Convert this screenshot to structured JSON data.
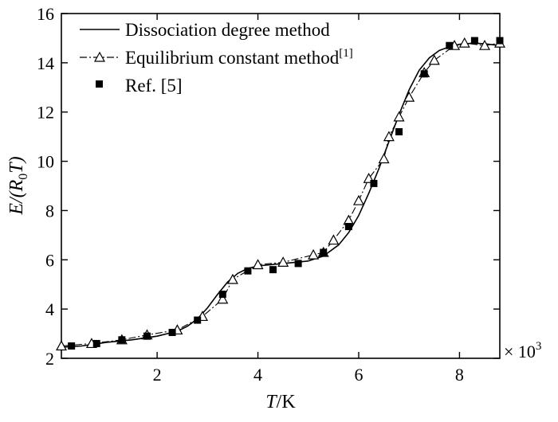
{
  "chart_data": {
    "type": "line",
    "xlabel": "T/K",
    "xlabel_italic": "T",
    "xlabel_rest": "/K",
    "ylabel_prefix": "E/(R",
    "ylabel_sub": "0",
    "ylabel_suffix": "T)",
    "x_multiplier_base": "× 10",
    "x_multiplier_exp": "3",
    "xlim": [
      0.1,
      8.8
    ],
    "ylim": [
      2,
      16
    ],
    "xticks": [
      2,
      4,
      6,
      8
    ],
    "yticks": [
      2,
      4,
      6,
      8,
      10,
      12,
      14,
      16
    ],
    "grid": false,
    "legend_position": "top-left",
    "series": [
      {
        "name": "Dissociation degree method",
        "style": "solid",
        "x": [
          0.1,
          0.5,
          1.0,
          1.5,
          2.0,
          2.4,
          2.6,
          2.8,
          3.0,
          3.2,
          3.4,
          3.6,
          3.8,
          4.0,
          4.5,
          5.0,
          5.3,
          5.6,
          5.8,
          6.0,
          6.2,
          6.4,
          6.6,
          6.8,
          7.0,
          7.2,
          7.4,
          7.6,
          7.8,
          8.0,
          8.3,
          8.6,
          8.8
        ],
        "y": [
          2.45,
          2.5,
          2.65,
          2.75,
          2.9,
          3.1,
          3.3,
          3.6,
          4.05,
          4.6,
          5.1,
          5.45,
          5.65,
          5.75,
          5.85,
          5.95,
          6.15,
          6.6,
          7.1,
          7.8,
          8.7,
          9.7,
          10.8,
          11.9,
          12.9,
          13.7,
          14.2,
          14.5,
          14.65,
          14.75,
          14.8,
          14.75,
          14.7
        ]
      },
      {
        "name": "Equilibrium constant method",
        "name_suffix": "[1]",
        "style": "dash-dot",
        "marker": "open-triangle",
        "x": [
          0.1,
          0.7,
          1.3,
          1.8,
          2.4,
          2.9,
          3.3,
          3.5,
          4.0,
          4.5,
          5.1,
          5.3,
          5.5,
          5.8,
          6.0,
          6.2,
          6.5,
          6.6,
          6.8,
          7.0,
          7.3,
          7.5,
          7.9,
          8.1,
          8.5,
          8.8
        ],
        "y": [
          2.5,
          2.6,
          2.75,
          2.95,
          3.15,
          3.7,
          4.4,
          5.2,
          5.8,
          5.9,
          6.2,
          6.3,
          6.8,
          7.6,
          8.4,
          9.3,
          10.1,
          11.0,
          11.8,
          12.6,
          13.6,
          14.1,
          14.7,
          14.8,
          14.7,
          14.8
        ]
      },
      {
        "name": "Ref. [5]",
        "style": "none",
        "marker": "filled-square",
        "x": [
          0.3,
          0.8,
          1.3,
          1.8,
          2.3,
          2.8,
          3.3,
          3.8,
          4.3,
          4.8,
          5.3,
          5.8,
          6.3,
          6.8,
          7.3,
          7.8,
          8.3,
          8.8
        ],
        "y": [
          2.5,
          2.6,
          2.75,
          2.9,
          3.05,
          3.55,
          4.6,
          5.55,
          5.6,
          5.85,
          6.3,
          7.35,
          9.1,
          11.2,
          13.55,
          14.7,
          14.9,
          14.9
        ]
      }
    ]
  }
}
